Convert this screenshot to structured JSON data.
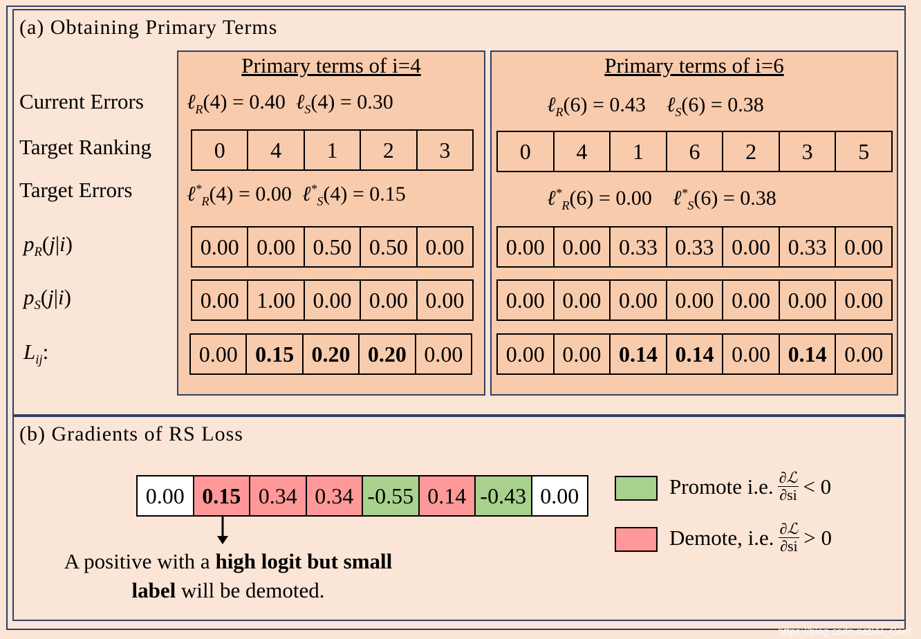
{
  "panel_a": {
    "title": "(a) Obtaining Primary Terms",
    "row_labels": {
      "current_errors": "Current Errors",
      "target_ranking": "Target Ranking",
      "target_errors": "Target Errors",
      "pR": "p_R(j|i)",
      "pS": "p_S(j|i)",
      "L": "L_ij:"
    },
    "box_i4": {
      "title": "Primary terms of i=4",
      "current_R": "ℓR(4) = 0.40",
      "current_S": "ℓS(4) = 0.30",
      "ranking": [
        "0",
        "4",
        "1",
        "2",
        "3"
      ],
      "target_R": "ℓ*R(4) = 0.00",
      "target_S": "ℓ*S(4) = 0.15",
      "pR": [
        "0.00",
        "0.00",
        "0.50",
        "0.50",
        "0.00"
      ],
      "pS": [
        "0.00",
        "1.00",
        "0.00",
        "0.00",
        "0.00"
      ],
      "L": [
        "0.00",
        "0.15",
        "0.20",
        "0.20",
        "0.00"
      ],
      "L_bold": [
        false,
        true,
        true,
        true,
        false
      ]
    },
    "box_i6": {
      "title": "Primary terms of i=6",
      "current_R": "ℓR(6) = 0.43",
      "current_S": "ℓS(6) = 0.38",
      "ranking": [
        "0",
        "4",
        "1",
        "6",
        "2",
        "3",
        "5"
      ],
      "target_R": "ℓ*R(6) = 0.00",
      "target_S": "ℓ*S(6) = 0.38",
      "pR": [
        "0.00",
        "0.00",
        "0.33",
        "0.33",
        "0.00",
        "0.33",
        "0.00"
      ],
      "pS": [
        "0.00",
        "0.00",
        "0.00",
        "0.00",
        "0.00",
        "0.00",
        "0.00"
      ],
      "L": [
        "0.00",
        "0.00",
        "0.14",
        "0.14",
        "0.00",
        "0.14",
        "0.00"
      ],
      "L_bold": [
        false,
        false,
        true,
        true,
        false,
        true,
        false
      ]
    }
  },
  "panel_b": {
    "title": "(b) Gradients of RS Loss",
    "gradients": [
      "0.00",
      "0.15",
      "0.34",
      "0.34",
      "-0.55",
      "0.14",
      "-0.43",
      "0.00"
    ],
    "gradient_bold": [
      false,
      true,
      false,
      false,
      false,
      false,
      false,
      false
    ],
    "gradient_colors": [
      "white",
      "red",
      "red",
      "red",
      "green",
      "red",
      "green",
      "white"
    ],
    "legend": {
      "promote_label": "Promote i.e.",
      "promote_relation": "< 0",
      "demote_label": "Demote, i.e.",
      "demote_relation": "> 0",
      "frac_num": "∂ℒ",
      "frac_den": "∂si"
    },
    "note_part1": "A positive with a ",
    "note_bold1": "high logit but small",
    "note_bold2": "label",
    "note_part2": " will be demoted."
  },
  "colors": {
    "background": "#fbe5d6",
    "box_fill": "#f8cbad",
    "border": "#2f3f63",
    "promote": "#a9d18e",
    "demote": "#ff9999"
  },
  "watermark": "https://blog.csdn.net/AI_Cont"
}
